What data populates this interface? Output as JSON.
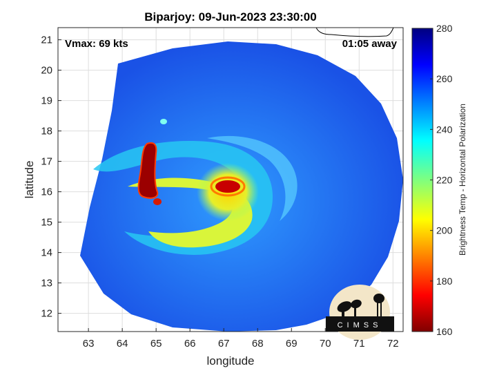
{
  "chart_data": {
    "type": "heatmap",
    "title": "Biparjoy: 09-Jun-2023 23:30:00",
    "xlabel": "longitude",
    "ylabel": "latitude",
    "xlim": [
      62.1,
      72.3
    ],
    "ylim": [
      11.4,
      21.4
    ],
    "xticks": [
      63,
      64,
      65,
      66,
      67,
      68,
      69,
      70,
      71,
      72
    ],
    "yticks": [
      12,
      13,
      14,
      15,
      16,
      17,
      18,
      19,
      20,
      21
    ],
    "grid": true,
    "annotations": {
      "vmax": "Vmax: 69 kts",
      "time_offset": "01:05 away"
    },
    "colorbar": {
      "label": "Brightness Temp - Horizontal Polarization",
      "range": [
        160,
        280
      ],
      "ticks": [
        160,
        180,
        200,
        220,
        240,
        260,
        280
      ],
      "colormap": "jet"
    },
    "storm_center": [
      67.2,
      16.0
    ],
    "logo_text": "CIMSS"
  },
  "colors": {
    "axis": "#262626",
    "grid": "#dddddd",
    "jet_low": "#800000",
    "jet_high": "#000080"
  }
}
